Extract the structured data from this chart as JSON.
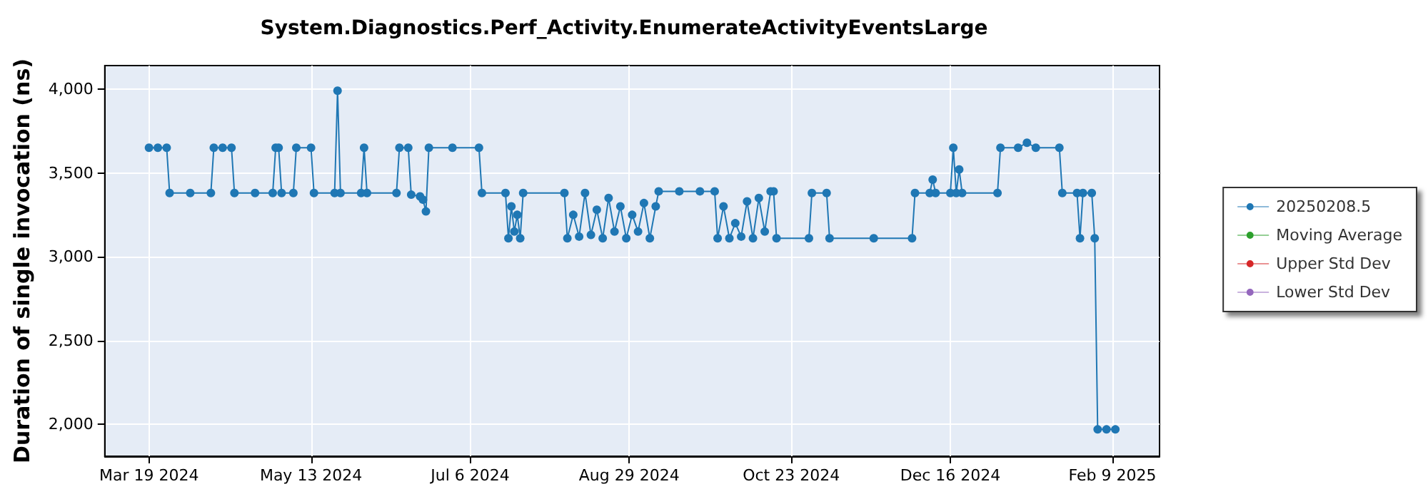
{
  "chart_data": {
    "type": "line",
    "title": "System.Diagnostics.Perf_Activity.EnumerateActivityEventsLarge",
    "ylabel": "Duration of single invocation (ns)",
    "xlim": [
      "2024-03-04",
      "2025-02-25"
    ],
    "xticks": [
      {
        "value": "2024-03-19",
        "label": "Mar 19 2024"
      },
      {
        "value": "2024-05-13",
        "label": "May 13 2024"
      },
      {
        "value": "2024-07-06",
        "label": "Jul 6 2024"
      },
      {
        "value": "2024-08-29",
        "label": "Aug 29 2024"
      },
      {
        "value": "2024-10-23",
        "label": "Oct 23 2024"
      },
      {
        "value": "2024-12-16",
        "label": "Dec 16 2024"
      },
      {
        "value": "2025-02-09",
        "label": "Feb 9 2025"
      }
    ],
    "ylim": [
      1810,
      4140
    ],
    "yticks": [
      {
        "value": 2000,
        "label": "2,000"
      },
      {
        "value": 2500,
        "label": "2,500"
      },
      {
        "value": 3000,
        "label": "3,000"
      },
      {
        "value": 3500,
        "label": "3,500"
      },
      {
        "value": 4000,
        "label": "4,000"
      }
    ],
    "grid": true,
    "legend": "right",
    "marker": "circle",
    "line_style": "solid",
    "series": [
      {
        "name": "20250208.5",
        "color": "#1f77b4",
        "x": [
          "2024-03-19",
          "2024-03-22",
          "2024-03-25",
          "2024-03-26",
          "2024-04-02",
          "2024-04-09",
          "2024-04-10",
          "2024-04-13",
          "2024-04-16",
          "2024-04-17",
          "2024-04-24",
          "2024-04-30",
          "2024-05-01",
          "2024-05-02",
          "2024-05-03",
          "2024-05-07",
          "2024-05-08",
          "2024-05-13",
          "2024-05-14",
          "2024-05-21",
          "2024-05-22",
          "2024-05-23",
          "2024-05-30",
          "2024-05-31",
          "2024-06-01",
          "2024-06-11",
          "2024-06-12",
          "2024-06-15",
          "2024-06-16",
          "2024-06-19",
          "2024-06-20",
          "2024-06-21",
          "2024-06-22",
          "2024-06-30",
          "2024-07-09",
          "2024-07-10",
          "2024-07-18",
          "2024-07-19",
          "2024-07-20",
          "2024-07-21",
          "2024-07-22",
          "2024-07-23",
          "2024-07-24",
          "2024-08-07",
          "2024-08-08",
          "2024-08-10",
          "2024-08-12",
          "2024-08-14",
          "2024-08-16",
          "2024-08-18",
          "2024-08-20",
          "2024-08-22",
          "2024-08-24",
          "2024-08-26",
          "2024-08-28",
          "2024-08-30",
          "2024-09-01",
          "2024-09-03",
          "2024-09-05",
          "2024-09-07",
          "2024-09-08",
          "2024-09-15",
          "2024-09-22",
          "2024-09-27",
          "2024-09-28",
          "2024-09-30",
          "2024-10-02",
          "2024-10-04",
          "2024-10-06",
          "2024-10-08",
          "2024-10-10",
          "2024-10-12",
          "2024-10-14",
          "2024-10-16",
          "2024-10-17",
          "2024-10-18",
          "2024-10-29",
          "2024-10-30",
          "2024-11-04",
          "2024-11-05",
          "2024-11-20",
          "2024-12-03",
          "2024-12-04",
          "2024-12-09",
          "2024-12-10",
          "2024-12-11",
          "2024-12-16",
          "2024-12-17",
          "2024-12-18",
          "2024-12-19",
          "2024-12-20",
          "2025-01-01",
          "2025-01-02",
          "2025-01-08",
          "2025-01-11",
          "2025-01-14",
          "2025-01-22",
          "2025-01-23",
          "2025-01-28",
          "2025-01-29",
          "2025-01-30",
          "2025-02-02",
          "2025-02-03",
          "2025-02-04",
          "2025-02-07",
          "2025-02-10"
        ],
        "values": [
          3650,
          3650,
          3650,
          3380,
          3380,
          3380,
          3650,
          3650,
          3650,
          3380,
          3380,
          3380,
          3650,
          3650,
          3380,
          3380,
          3650,
          3650,
          3380,
          3380,
          3990,
          3380,
          3380,
          3650,
          3380,
          3380,
          3650,
          3650,
          3370,
          3360,
          3340,
          3270,
          3650,
          3650,
          3650,
          3380,
          3380,
          3110,
          3300,
          3150,
          3250,
          3110,
          3380,
          3380,
          3110,
          3250,
          3120,
          3380,
          3130,
          3280,
          3110,
          3350,
          3150,
          3300,
          3110,
          3250,
          3150,
          3320,
          3110,
          3300,
          3390,
          3390,
          3390,
          3390,
          3110,
          3300,
          3110,
          3200,
          3120,
          3330,
          3110,
          3350,
          3150,
          3390,
          3390,
          3110,
          3110,
          3380,
          3380,
          3110,
          3110,
          3110,
          3380,
          3380,
          3460,
          3380,
          3380,
          3650,
          3380,
          3520,
          3380,
          3380,
          3650,
          3650,
          3680,
          3650,
          3650,
          3380,
          3380,
          3110,
          3380,
          3380,
          3110,
          1970,
          1970,
          1970
        ]
      },
      {
        "name": "Moving Average",
        "color": "#2ca02c"
      },
      {
        "name": "Upper Std Dev",
        "color": "#d62728"
      },
      {
        "name": "Lower Std Dev",
        "color": "#9467bd"
      }
    ]
  }
}
